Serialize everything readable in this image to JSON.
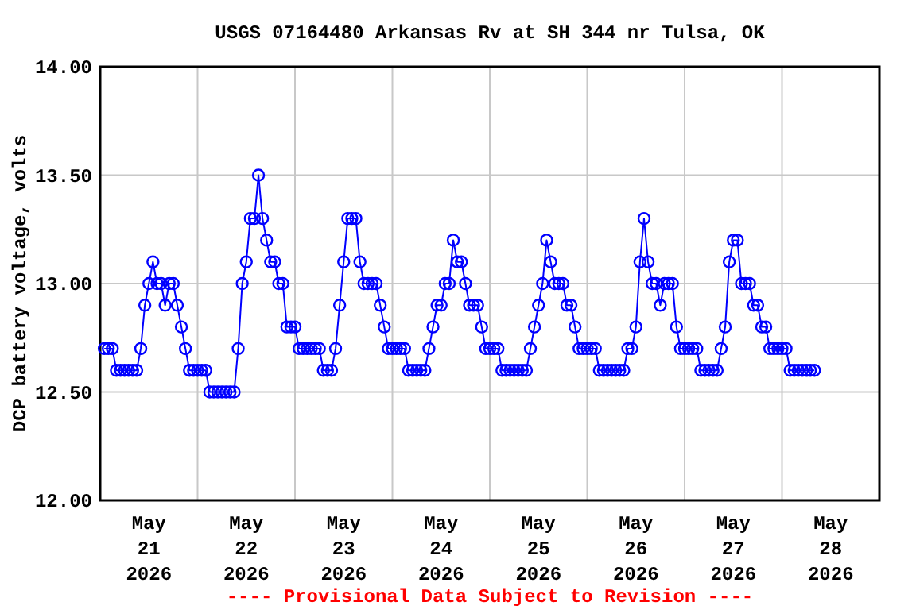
{
  "chart_data": {
    "type": "line",
    "title": "USGS 07164480 Arkansas Rv at SH 344 nr Tulsa, OK",
    "ylabel": "DCP battery voltage, volts",
    "annotations": [
      "---- Provisional Data Subject to Revision ----"
    ],
    "xlim": [
      "2026-05-21T00:00",
      "2026-05-29T00:00"
    ],
    "xticks": [
      {
        "value": "2026-05-21T12:00",
        "label": "May\n21\n2026"
      },
      {
        "value": "2026-05-22T00:00",
        "label": null
      },
      {
        "value": "2026-05-22T12:00",
        "label": "May\n22\n2026"
      },
      {
        "value": "2026-05-23T00:00",
        "label": null
      },
      {
        "value": "2026-05-23T12:00",
        "label": "May\n23\n2026"
      },
      {
        "value": "2026-05-24T00:00",
        "label": null
      },
      {
        "value": "2026-05-24T12:00",
        "label": "May\n24\n2026"
      },
      {
        "value": "2026-05-25T00:00",
        "label": null
      },
      {
        "value": "2026-05-25T12:00",
        "label": "May\n25\n2026"
      },
      {
        "value": "2026-05-26T00:00",
        "label": null
      },
      {
        "value": "2026-05-26T12:00",
        "label": "May\n26\n2026"
      },
      {
        "value": "2026-05-27T00:00",
        "label": null
      },
      {
        "value": "2026-05-27T12:00",
        "label": "May\n27\n2026"
      },
      {
        "value": "2026-05-28T00:00",
        "label": null
      },
      {
        "value": "2026-05-28T12:00",
        "label": "May\n28\n2026"
      }
    ],
    "ylim": [
      12,
      14
    ],
    "yticks": [
      {
        "value": 12,
        "label": "12.00"
      },
      {
        "value": 12.5,
        "label": "12.50"
      },
      {
        "value": 13,
        "label": "13.00"
      },
      {
        "value": 13.5,
        "label": "13.50"
      },
      {
        "value": 14,
        "label": "14.00"
      }
    ],
    "grid": true,
    "marker": "circle",
    "line_style": "solid",
    "series": [
      {
        "color": "#0000ff",
        "x": [
          "2026-05-21T01:00",
          "2026-05-21T02:00",
          "2026-05-21T03:00",
          "2026-05-21T04:00",
          "2026-05-21T05:00",
          "2026-05-21T06:00",
          "2026-05-21T07:00",
          "2026-05-21T08:00",
          "2026-05-21T09:00",
          "2026-05-21T10:00",
          "2026-05-21T11:00",
          "2026-05-21T12:00",
          "2026-05-21T13:00",
          "2026-05-21T14:00",
          "2026-05-21T15:00",
          "2026-05-21T16:00",
          "2026-05-21T17:00",
          "2026-05-21T18:00",
          "2026-05-21T19:00",
          "2026-05-21T20:00",
          "2026-05-21T21:00",
          "2026-05-21T22:00",
          "2026-05-21T23:00",
          "2026-05-22T00:00",
          "2026-05-22T01:00",
          "2026-05-22T02:00",
          "2026-05-22T03:00",
          "2026-05-22T04:00",
          "2026-05-22T05:00",
          "2026-05-22T06:00",
          "2026-05-22T07:00",
          "2026-05-22T08:00",
          "2026-05-22T09:00",
          "2026-05-22T10:00",
          "2026-05-22T11:00",
          "2026-05-22T12:00",
          "2026-05-22T13:00",
          "2026-05-22T14:00",
          "2026-05-22T15:00",
          "2026-05-22T16:00",
          "2026-05-22T17:00",
          "2026-05-22T18:00",
          "2026-05-22T19:00",
          "2026-05-22T20:00",
          "2026-05-22T21:00",
          "2026-05-22T22:00",
          "2026-05-22T23:00",
          "2026-05-23T00:00",
          "2026-05-23T01:00",
          "2026-05-23T02:00",
          "2026-05-23T03:00",
          "2026-05-23T04:00",
          "2026-05-23T05:00",
          "2026-05-23T06:00",
          "2026-05-23T07:00",
          "2026-05-23T08:00",
          "2026-05-23T09:00",
          "2026-05-23T10:00",
          "2026-05-23T11:00",
          "2026-05-23T12:00",
          "2026-05-23T13:00",
          "2026-05-23T14:00",
          "2026-05-23T15:00",
          "2026-05-23T16:00",
          "2026-05-23T17:00",
          "2026-05-23T18:00",
          "2026-05-23T19:00",
          "2026-05-23T20:00",
          "2026-05-23T21:00",
          "2026-05-23T22:00",
          "2026-05-23T23:00",
          "2026-05-24T00:00",
          "2026-05-24T01:00",
          "2026-05-24T02:00",
          "2026-05-24T03:00",
          "2026-05-24T04:00",
          "2026-05-24T05:00",
          "2026-05-24T06:00",
          "2026-05-24T07:00",
          "2026-05-24T08:00",
          "2026-05-24T09:00",
          "2026-05-24T10:00",
          "2026-05-24T11:00",
          "2026-05-24T12:00",
          "2026-05-24T13:00",
          "2026-05-24T14:00",
          "2026-05-24T15:00",
          "2026-05-24T16:00",
          "2026-05-24T17:00",
          "2026-05-24T18:00",
          "2026-05-24T19:00",
          "2026-05-24T20:00",
          "2026-05-24T21:00",
          "2026-05-24T22:00",
          "2026-05-24T23:00",
          "2026-05-25T00:00",
          "2026-05-25T01:00",
          "2026-05-25T02:00",
          "2026-05-25T03:00",
          "2026-05-25T04:00",
          "2026-05-25T05:00",
          "2026-05-25T06:00",
          "2026-05-25T07:00",
          "2026-05-25T08:00",
          "2026-05-25T09:00",
          "2026-05-25T10:00",
          "2026-05-25T11:00",
          "2026-05-25T12:00",
          "2026-05-25T13:00",
          "2026-05-25T14:00",
          "2026-05-25T15:00",
          "2026-05-25T16:00",
          "2026-05-25T17:00",
          "2026-05-25T18:00",
          "2026-05-25T19:00",
          "2026-05-25T20:00",
          "2026-05-25T21:00",
          "2026-05-25T22:00",
          "2026-05-25T23:00",
          "2026-05-26T00:00",
          "2026-05-26T01:00",
          "2026-05-26T02:00",
          "2026-05-26T03:00",
          "2026-05-26T04:00",
          "2026-05-26T05:00",
          "2026-05-26T06:00",
          "2026-05-26T07:00",
          "2026-05-26T08:00",
          "2026-05-26T09:00",
          "2026-05-26T10:00",
          "2026-05-26T11:00",
          "2026-05-26T12:00",
          "2026-05-26T13:00",
          "2026-05-26T14:00",
          "2026-05-26T15:00",
          "2026-05-26T16:00",
          "2026-05-26T17:00",
          "2026-05-26T18:00",
          "2026-05-26T19:00",
          "2026-05-26T20:00",
          "2026-05-26T21:00",
          "2026-05-26T22:00",
          "2026-05-26T23:00",
          "2026-05-27T00:00",
          "2026-05-27T01:00",
          "2026-05-27T02:00",
          "2026-05-27T03:00",
          "2026-05-27T04:00",
          "2026-05-27T05:00",
          "2026-05-27T06:00",
          "2026-05-27T07:00",
          "2026-05-27T08:00",
          "2026-05-27T09:00",
          "2026-05-27T10:00",
          "2026-05-27T11:00",
          "2026-05-27T12:00",
          "2026-05-27T13:00",
          "2026-05-27T14:00",
          "2026-05-27T15:00",
          "2026-05-27T16:00",
          "2026-05-27T17:00",
          "2026-05-27T18:00",
          "2026-05-27T19:00",
          "2026-05-27T20:00",
          "2026-05-27T21:00",
          "2026-05-27T22:00",
          "2026-05-27T23:00",
          "2026-05-28T00:00",
          "2026-05-28T01:00",
          "2026-05-28T02:00",
          "2026-05-28T03:00",
          "2026-05-28T04:00",
          "2026-05-28T05:00",
          "2026-05-28T06:00",
          "2026-05-28T07:00",
          "2026-05-28T08:00"
        ],
        "values": [
          12.7,
          12.7,
          12.7,
          12.6,
          12.6,
          12.6,
          12.6,
          12.6,
          12.6,
          12.7,
          12.9,
          13.0,
          13.1,
          13.0,
          13.0,
          12.9,
          13.0,
          13.0,
          12.9,
          12.8,
          12.7,
          12.6,
          12.6,
          12.6,
          12.6,
          12.6,
          12.5,
          12.5,
          12.5,
          12.5,
          12.5,
          12.5,
          12.5,
          12.7,
          13.0,
          13.1,
          13.3,
          13.3,
          13.5,
          13.3,
          13.2,
          13.1,
          13.1,
          13.0,
          13.0,
          12.8,
          12.8,
          12.8,
          12.7,
          12.7,
          12.7,
          12.7,
          12.7,
          12.7,
          12.6,
          12.6,
          12.6,
          12.7,
          12.9,
          13.1,
          13.3,
          13.3,
          13.3,
          13.1,
          13.0,
          13.0,
          13.0,
          13.0,
          12.9,
          12.8,
          12.7,
          12.7,
          12.7,
          12.7,
          12.7,
          12.6,
          12.6,
          12.6,
          12.6,
          12.6,
          12.7,
          12.8,
          12.9,
          12.9,
          13.0,
          13.0,
          13.2,
          13.1,
          13.1,
          13.0,
          12.9,
          12.9,
          12.9,
          12.8,
          12.7,
          12.7,
          12.7,
          12.7,
          12.6,
          12.6,
          12.6,
          12.6,
          12.6,
          12.6,
          12.6,
          12.7,
          12.8,
          12.9,
          13.0,
          13.2,
          13.1,
          13.0,
          13.0,
          13.0,
          12.9,
          12.9,
          12.8,
          12.7,
          12.7,
          12.7,
          12.7,
          12.7,
          12.6,
          12.6,
          12.6,
          12.6,
          12.6,
          12.6,
          12.6,
          12.7,
          12.7,
          12.8,
          13.1,
          13.3,
          13.1,
          13.0,
          13.0,
          12.9,
          13.0,
          13.0,
          13.0,
          12.8,
          12.7,
          12.7,
          12.7,
          12.7,
          12.7,
          12.6,
          12.6,
          12.6,
          12.6,
          12.6,
          12.7,
          12.8,
          13.1,
          13.2,
          13.2,
          13.0,
          13.0,
          13.0,
          12.9,
          12.9,
          12.8,
          12.8,
          12.7,
          12.7,
          12.7,
          12.7,
          12.7,
          12.6,
          12.6,
          12.6,
          12.6,
          12.6,
          12.6,
          12.6
        ]
      }
    ]
  }
}
